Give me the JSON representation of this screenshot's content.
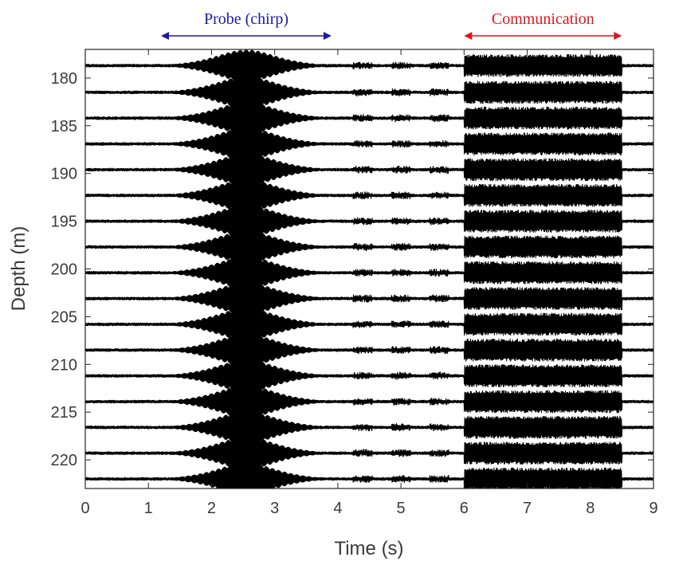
{
  "chart_data": {
    "type": "line",
    "title": "",
    "xlabel": "Time (s)",
    "ylabel": "Depth (m)",
    "xlim": [
      0,
      9
    ],
    "ylim": [
      223,
      177
    ],
    "y_reversed": true,
    "grid": false,
    "x_ticks": [
      0,
      1,
      2,
      3,
      4,
      5,
      6,
      7,
      8,
      9
    ],
    "y_ticks": [
      180,
      185,
      190,
      195,
      200,
      205,
      210,
      215,
      220
    ],
    "trace_depths": [
      178.7,
      181.5,
      184.2,
      186.9,
      189.6,
      192.3,
      195.0,
      197.7,
      200.4,
      203.1,
      205.8,
      208.5,
      211.2,
      213.9,
      216.6,
      219.3,
      222.0
    ],
    "series": [
      {
        "segments": [
          {
            "start": 1.2,
            "end": 3.9,
            "kind": "probe chirp bursts",
            "peak_amplitude_m": 1.4
          },
          {
            "start": 6.0,
            "end": 8.5,
            "kind": "communication noise band",
            "peak_amplitude_m": 1.2
          }
        ]
      }
    ],
    "annotations": [
      {
        "text": "Probe (chirp)",
        "start": 1.2,
        "end": 3.9,
        "color": "#1a1aa6"
      },
      {
        "text": "Communication",
        "start": 6.0,
        "end": 8.5,
        "color": "#e0141b"
      }
    ],
    "line_color": "#000000"
  }
}
